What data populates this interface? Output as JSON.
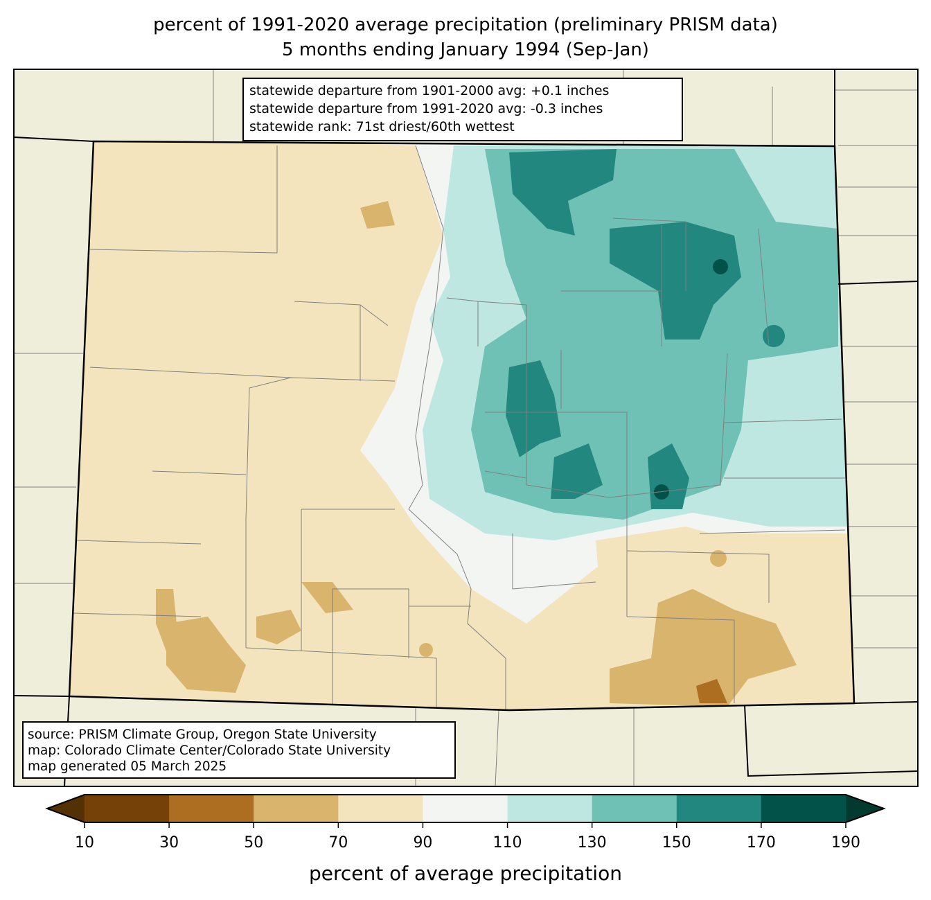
{
  "title": {
    "line1": "percent of 1991-2020 average precipitation (preliminary PRISM data)",
    "line2": "5 months ending January 1994 (Sep-Jan)"
  },
  "stats": {
    "line1": "statewide departure from 1901-2000 avg: +0.1 inches",
    "line2": "statewide departure from 1991-2020 avg: -0.3 inches",
    "line3": "statewide rank: 71st driest/60th wettest"
  },
  "source": {
    "line1": "source: PRISM Climate Group, Oregon State University",
    "line2": "map: Colorado Climate Center/Colorado State University",
    "line3": "map generated 05 March 2025"
  },
  "colorbar": {
    "label": "percent of average precipitation",
    "ticks": [
      "10",
      "30",
      "50",
      "70",
      "90",
      "110",
      "130",
      "150",
      "170",
      "190"
    ],
    "colors": [
      "#764108",
      "#ad6e22",
      "#d9b46c",
      "#f3e4be",
      "#f3f5f3",
      "#bfe7e2",
      "#6fc1b5",
      "#22877f",
      "#02524a"
    ],
    "under_color": "#543005",
    "over_color": "#033a30"
  },
  "colors": {
    "background_land": "#efeedb",
    "border": "#808080"
  }
}
